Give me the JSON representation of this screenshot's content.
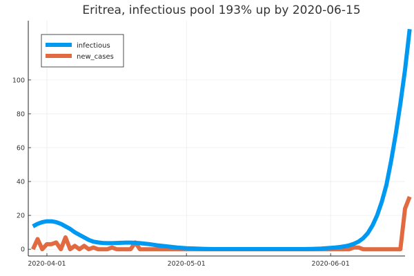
{
  "chart_data": {
    "type": "line",
    "title": "Eritrea, infectious pool 193% up by 2020-06-15",
    "xlabel": "",
    "ylabel": "",
    "x_start": "2020-03-29",
    "x_ticks": [
      {
        "label": "2020-04-01",
        "value": "2020-04-01"
      },
      {
        "label": "2020-05-01",
        "value": "2020-05-01"
      },
      {
        "label": "2020-06-01",
        "value": "2020-06-01"
      }
    ],
    "y_ticks": [
      0,
      20,
      40,
      60,
      80,
      100
    ],
    "xlim": [
      "2020-03-28",
      "2020-06-17"
    ],
    "ylim": [
      -4,
      135
    ],
    "grid": true,
    "legend_position": "top-left",
    "series": [
      {
        "name": "infectious",
        "color": "#0099f2",
        "values": [
          13.5,
          15,
          16,
          16.5,
          16.5,
          16,
          15,
          13.5,
          12,
          10,
          8.5,
          7,
          5.5,
          4.5,
          4,
          3.7,
          3.6,
          3.6,
          3.7,
          3.8,
          3.9,
          3.9,
          3.8,
          3.6,
          3.3,
          3,
          2.6,
          2.2,
          1.9,
          1.6,
          1.3,
          1,
          0.8,
          0.6,
          0.5,
          0.4,
          0.3,
          0.2,
          0.15,
          0.1,
          0.1,
          0.1,
          0.1,
          0.1,
          0.1,
          0.1,
          0.1,
          0.1,
          0.1,
          0.1,
          0.1,
          0.1,
          0.1,
          0.1,
          0.1,
          0.1,
          0.1,
          0.1,
          0.1,
          0.15,
          0.2,
          0.3,
          0.4,
          0.6,
          0.8,
          1,
          1.3,
          1.7,
          2.3,
          3.2,
          4.5,
          6.5,
          9.5,
          14,
          20,
          28,
          38,
          52,
          68,
          86,
          106,
          130
        ]
      },
      {
        "name": "new_cases",
        "color": "#e26a40",
        "values": [
          0,
          6,
          0,
          3,
          3,
          4,
          0,
          7,
          0,
          2,
          0,
          2,
          0,
          1,
          0,
          0,
          0,
          1,
          0,
          0,
          0,
          0,
          4,
          0,
          0,
          0,
          0,
          0,
          0,
          0,
          0,
          0,
          0,
          0,
          0,
          0,
          0,
          0,
          0,
          0,
          0,
          0,
          0,
          0,
          0,
          0,
          0,
          0,
          0,
          0,
          0,
          0,
          0,
          0,
          0,
          0,
          0,
          0,
          0,
          0,
          0,
          0,
          0,
          0,
          0,
          0,
          0,
          0,
          0,
          1,
          1,
          0,
          0,
          0,
          0,
          0,
          0,
          0,
          0,
          0,
          24,
          31
        ]
      }
    ]
  }
}
